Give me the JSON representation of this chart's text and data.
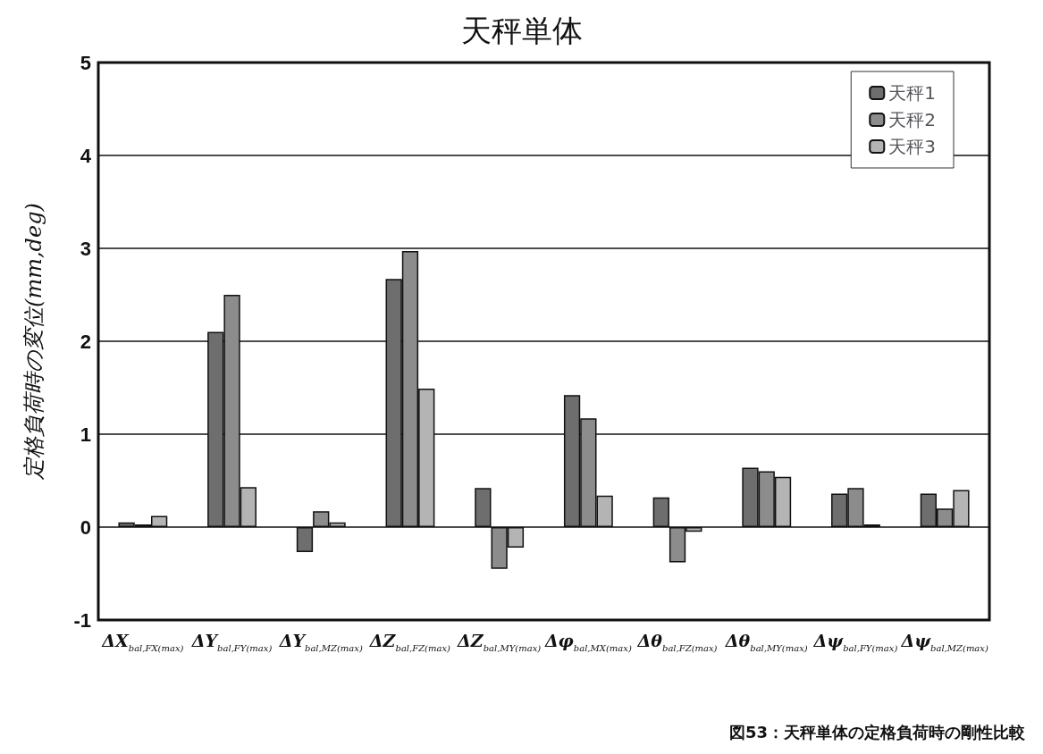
{
  "chart_data": {
    "type": "bar",
    "title": "天秤単体",
    "ylabel": "定格負荷時の変位(mm,deg)",
    "annotations": [
      "図53：天秤単体の定格負荷時の剛性比較"
    ],
    "categories": [
      "ΔX$_{bal,FX(max)}$",
      "ΔY$_{bal,FY(max)}$",
      "ΔY$_{bal,MZ(max)}$",
      "ΔZ$_{bal,FZ(max)}$",
      "ΔZ$_{bal,MY(max)}$",
      "Δφ$_{bal,MX(max)}$",
      "Δθ$_{bal,FZ(max)}$",
      "Δθ$_{bal,MY(max)}$",
      "Δψ$_{bal,FY(max)}$",
      "Δψ$_{bal,MZ(max)}$"
    ],
    "series": [
      {
        "name": "天秤1",
        "color": "#6e6e6e",
        "values": [
          0.05,
          2.1,
          -0.27,
          2.67,
          0.42,
          1.42,
          0.32,
          0.64,
          0.36,
          0.36
        ]
      },
      {
        "name": "天秤2",
        "color": "#8c8c8c",
        "values": [
          0.03,
          2.5,
          0.17,
          2.97,
          -0.45,
          1.17,
          -0.38,
          0.6,
          0.42,
          0.2
        ]
      },
      {
        "name": "天秤3",
        "color": "#b4b4b4",
        "values": [
          0.12,
          0.43,
          0.05,
          1.49,
          -0.22,
          0.34,
          -0.05,
          0.54,
          0.03,
          0.4
        ]
      }
    ],
    "ylim": [
      -1,
      5
    ],
    "yticks": [
      -1,
      0,
      1,
      2,
      3,
      4,
      5
    ],
    "grid": "y",
    "legend": "top right"
  }
}
